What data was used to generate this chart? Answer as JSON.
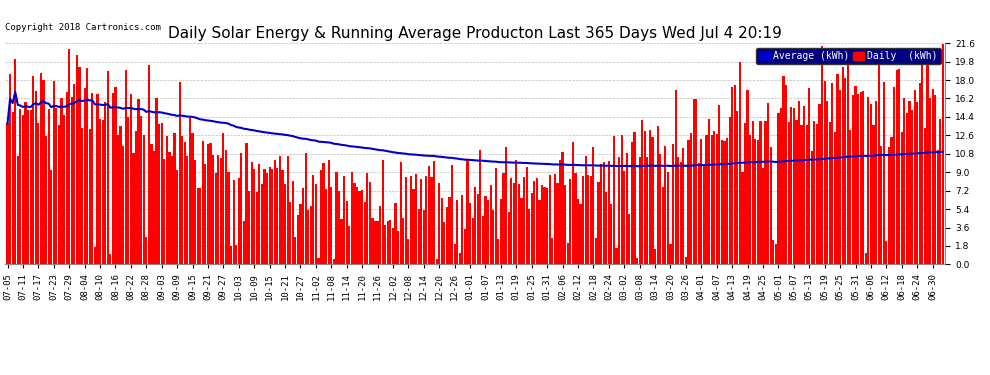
{
  "title": "Daily Solar Energy & Running Average Producton Last 365 Days Wed Jul 4 20:19",
  "copyright": "Copyright 2018 Cartronics.com",
  "legend_average": "Average (kWh)",
  "legend_daily": "Daily  (kWh)",
  "bar_color": "#ff0000",
  "avg_line_color": "#0000cc",
  "background_color": "#ffffff",
  "plot_bg_color": "#ffffff",
  "grid_color": "#bbbbbb",
  "ylim": [
    0.0,
    21.6
  ],
  "yticks": [
    0.0,
    1.8,
    3.6,
    5.4,
    7.2,
    9.0,
    10.8,
    12.6,
    14.4,
    16.2,
    18.0,
    19.8,
    21.6
  ],
  "title_fontsize": 11,
  "copyright_fontsize": 6.5,
  "tick_fontsize": 6.5,
  "legend_fontsize": 7,
  "avg_linewidth": 1.5,
  "bar_width": 0.85,
  "legend_avg_color": "#0000cc",
  "legend_daily_color": "#ff0000",
  "legend_bg_color": "#000080",
  "legend_text_color": "#ffffff"
}
